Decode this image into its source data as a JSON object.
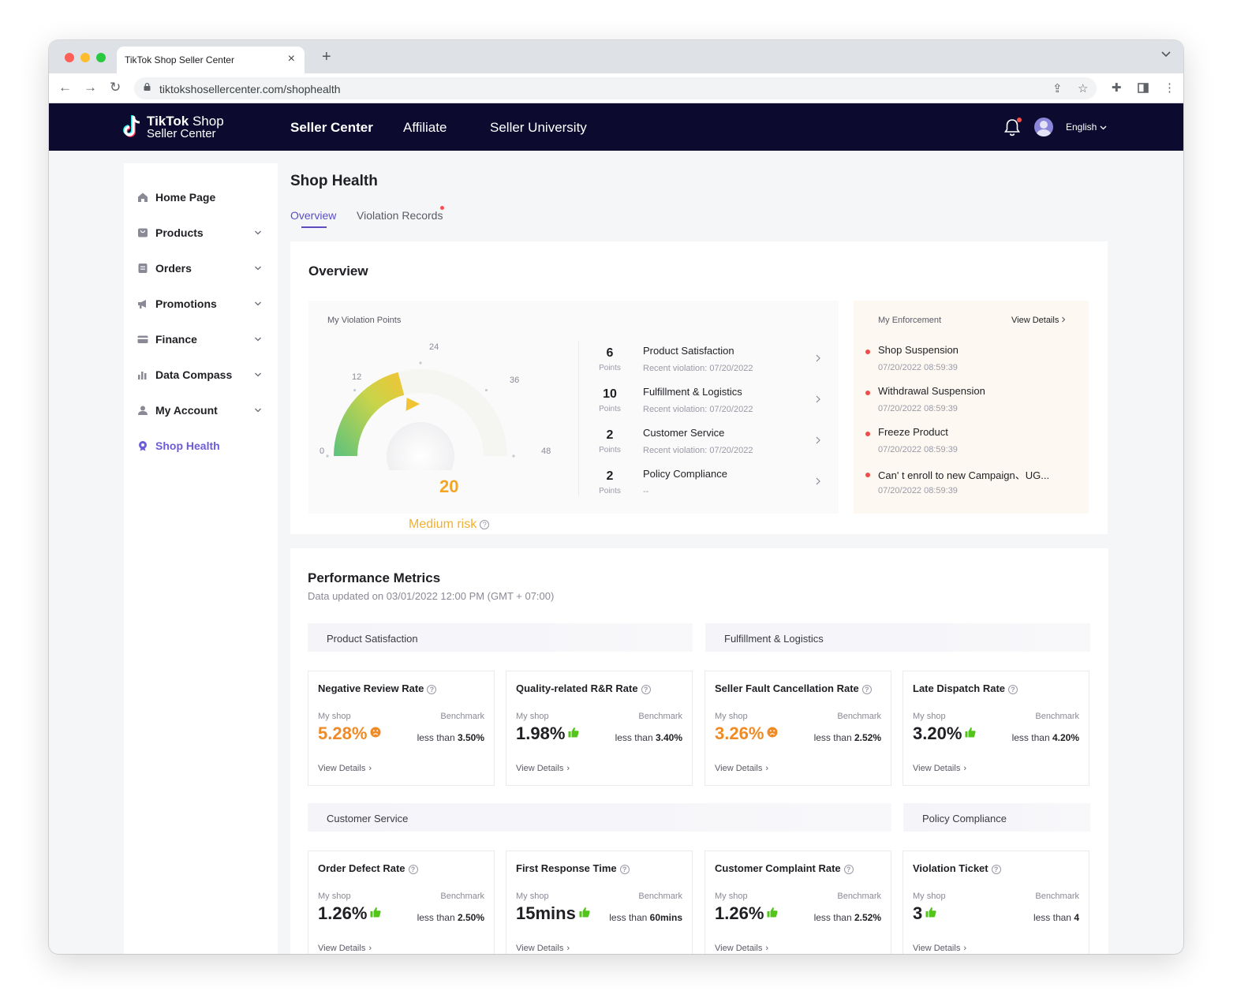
{
  "browser": {
    "tab_title": "TikTok Shop Seller Center",
    "url": "tiktokshosellercenter.com/shophealth"
  },
  "header": {
    "logo_line1_bold": "TikTok",
    "logo_line1_rest": "Shop",
    "logo_line2": "Seller Center",
    "nav": [
      "Seller Center",
      "Affiliate",
      "Seller University"
    ],
    "language": "English"
  },
  "sidebar": {
    "items": [
      {
        "label": "Home Page",
        "icon": "home-icon"
      },
      {
        "label": "Products",
        "icon": "products-icon"
      },
      {
        "label": "Orders",
        "icon": "orders-icon"
      },
      {
        "label": "Promotions",
        "icon": "promotions-icon"
      },
      {
        "label": "Finance",
        "icon": "finance-icon"
      },
      {
        "label": "Data Compass",
        "icon": "data-compass-icon"
      },
      {
        "label": "My Account",
        "icon": "my-account-icon"
      },
      {
        "label": "Shop Health",
        "icon": "shop-health-icon"
      }
    ]
  },
  "page": {
    "title": "Shop Health",
    "tabs": [
      "Overview",
      "Violation Records"
    ]
  },
  "overview": {
    "title": "Overview",
    "violation_label": "My Violation Points",
    "gauge": {
      "value": "20",
      "ticks": [
        "0",
        "12",
        "24",
        "36",
        "48"
      ],
      "risk": "Medium risk",
      "points": 20,
      "max": 48
    },
    "violations": [
      {
        "points": "6",
        "unit": "Points",
        "name": "Product Satisfaction",
        "recent": "Recent violation: 07/20/2022"
      },
      {
        "points": "10",
        "unit": "Points",
        "name": "Fulfillment & Logistics",
        "recent": "Recent violation: 07/20/2022"
      },
      {
        "points": "2",
        "unit": "Points",
        "name": "Customer Service",
        "recent": "Recent violation: 07/20/2022"
      },
      {
        "points": "2",
        "unit": "Points",
        "name": "Policy Compliance",
        "recent": "--"
      }
    ],
    "enforcement": {
      "label": "My Enforcement",
      "view_details": "View Details",
      "items": [
        {
          "name": "Shop Suspension",
          "time": "07/20/2022 08:59:39"
        },
        {
          "name": "Withdrawal Suspension",
          "time": "07/20/2022 08:59:39"
        },
        {
          "name": "Freeze Product",
          "time": "07/20/2022 08:59:39"
        },
        {
          "name": "Can' t enroll to new Campaign、UG...",
          "time": "07/20/2022 08:59:39"
        }
      ]
    }
  },
  "performance": {
    "title": "Performance Metrics",
    "updated": "Data updated on 03/01/2022 12:00 PM (GMT + 07:00)",
    "categories": [
      "Product Satisfaction",
      "Fulfillment & Logistics",
      "Customer Service",
      "Policy Compliance"
    ],
    "my_shop_label": "My shop",
    "benchmark_label": "Benchmark",
    "view_details": "View Details",
    "metrics": [
      {
        "title": "Negative Review Rate",
        "value": "5.28%",
        "status": "warn",
        "bench_prefix": "less than",
        "bench": "3.50%"
      },
      {
        "title": "Quality-related R&R Rate",
        "value": "1.98%",
        "status": "good",
        "bench_prefix": "less than",
        "bench": "3.40%"
      },
      {
        "title": "Seller Fault Cancellation Rate",
        "value": "3.26%",
        "status": "warn",
        "bench_prefix": "less than",
        "bench": "2.52%"
      },
      {
        "title": "Late Dispatch Rate",
        "value": "3.20%",
        "status": "good",
        "bench_prefix": "less than",
        "bench": "4.20%"
      },
      {
        "title": "Order Defect Rate",
        "value": "1.26%",
        "status": "good",
        "bench_prefix": "less than",
        "bench": "2.50%"
      },
      {
        "title": "First Response Time",
        "value": "15mins",
        "status": "good",
        "bench_prefix": "less than",
        "bench": "60mins"
      },
      {
        "title": "Customer Complaint Rate",
        "value": "1.26%",
        "status": "good",
        "bench_prefix": "less than",
        "bench": "2.52%"
      },
      {
        "title": "Violation Ticket",
        "value": "3",
        "status": "good",
        "bench_prefix": "less than",
        "bench": "4"
      }
    ]
  },
  "colors": {
    "header_bg": "#0c0b2f",
    "accent": "#5b4ec5",
    "warn": "#f08a24",
    "good": "#52c41a",
    "risk": "#f0b030"
  }
}
